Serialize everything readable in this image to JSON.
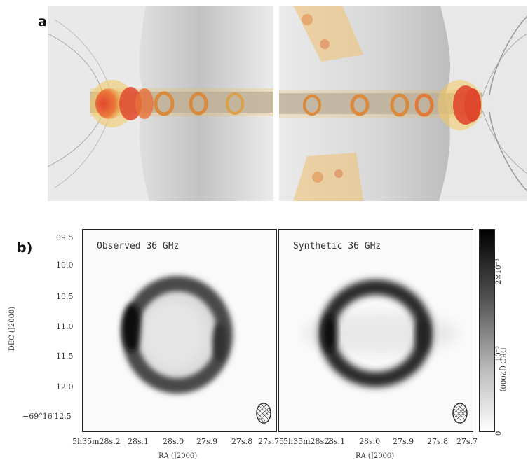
{
  "figure": {
    "panel_a_label": "a)",
    "panel_b_label": "b)"
  },
  "panel_b": {
    "observed_title": "Observed 36 GHz",
    "synthetic_title": "Synthetic 36 GHz",
    "dec_ticks": [
      "09.5",
      "10.0",
      "10.5",
      "11.0",
      "11.5",
      "12.0",
      "−69°16′12.5"
    ],
    "ra_ticks_left": [
      "5h35m28s.2",
      "28s.1",
      "28s.0",
      "27s.9",
      "27s.8",
      "27s.75"
    ],
    "ra_ticks_right": [
      "5h35m28s.2",
      "28s.1",
      "28s.0",
      "27s.9",
      "27s.8",
      "27s.7"
    ],
    "ylabel": "DEC (J2000)",
    "xlabel": "RA (J2000)",
    "colorbar_label": "DEC (J2000)",
    "colorbar_ticks": [
      "2×10⁻³",
      "10⁻³",
      "0"
    ],
    "colors": {
      "ring": "#111111",
      "frame": "#222222"
    }
  },
  "panel_a": {
    "colors": {
      "hot": "#e0482e",
      "warm": "#f0a030",
      "gas": "#b8b8b8",
      "jet": "#8a8a95"
    }
  }
}
